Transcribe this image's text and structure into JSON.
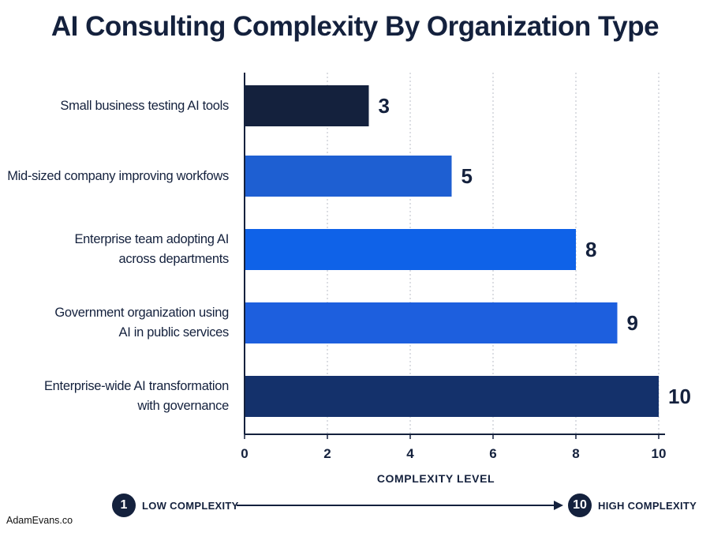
{
  "chart_data": {
    "type": "bar",
    "orientation": "horizontal",
    "title": "AI Consulting Complexity By Organization Type",
    "categories": [
      "Small business testing AI tools",
      "Mid-sized company improving workfows",
      "Enterprise team adopting AI\nacross departments",
      "Government organization using\nAI in public services",
      "Enterprise-wide AI transformation\nwith governance"
    ],
    "values": [
      3,
      5,
      8,
      9,
      10
    ],
    "value_labels": [
      "3",
      "5",
      "8",
      "9",
      "10"
    ],
    "bar_colors": [
      "#14213d",
      "#1e5fd2",
      "#0f62e8",
      "#1d5fde",
      "#14316b"
    ],
    "xlabel": "COMPLEXITY LEVEL",
    "ylabel": "",
    "xlim": [
      0,
      10
    ],
    "xticks": [
      "0",
      "2",
      "4",
      "6",
      "8",
      "10"
    ],
    "grid": "vertical dotted",
    "legend": "none"
  },
  "scale_legend": {
    "low_badge": "1",
    "low_label": "LOW COMPLEXITY",
    "high_badge": "10",
    "high_label": "HIGH COMPLEXITY"
  },
  "credit": "AdamEvans.co"
}
